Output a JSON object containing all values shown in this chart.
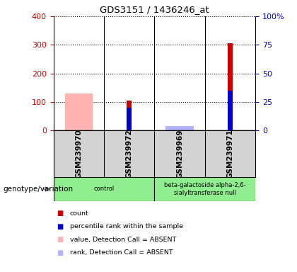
{
  "title": "GDS3151 / 1436246_at",
  "samples": [
    "GSM239970",
    "GSM239972",
    "GSM239969",
    "GSM239971"
  ],
  "count_values": [
    0,
    105,
    0,
    305
  ],
  "percentile_values_pct": [
    0,
    20,
    0,
    35
  ],
  "absent_value_values": [
    130,
    0,
    0,
    0
  ],
  "absent_rank_values_pct": [
    0,
    0,
    4,
    0
  ],
  "ylim_left": [
    0,
    400
  ],
  "ylim_right": [
    0,
    100
  ],
  "yticks_left": [
    0,
    100,
    200,
    300,
    400
  ],
  "yticks_right": [
    0,
    25,
    50,
    75,
    100
  ],
  "yticklabels_right": [
    "0",
    "25",
    "50",
    "75",
    "100%"
  ],
  "left_color": "#cc0000",
  "right_color": "#0000cc",
  "absent_value_color": "#ffb3b3",
  "absent_rank_color": "#b3b3ff",
  "group_label": "genotype/variation",
  "group_labels": [
    "control",
    "beta-galactoside alpha-2,6-\nsialyltransferase null"
  ],
  "group_color": "#90ee90",
  "background_color": "#ffffff",
  "sample_area_color": "#d3d3d3",
  "legend_items": [
    {
      "color": "#cc0000",
      "label": "count"
    },
    {
      "color": "#0000cc",
      "label": "percentile rank within the sample"
    },
    {
      "color": "#ffb3b3",
      "label": "value, Detection Call = ABSENT"
    },
    {
      "color": "#b3b3ff",
      "label": "rank, Detection Call = ABSENT"
    }
  ]
}
